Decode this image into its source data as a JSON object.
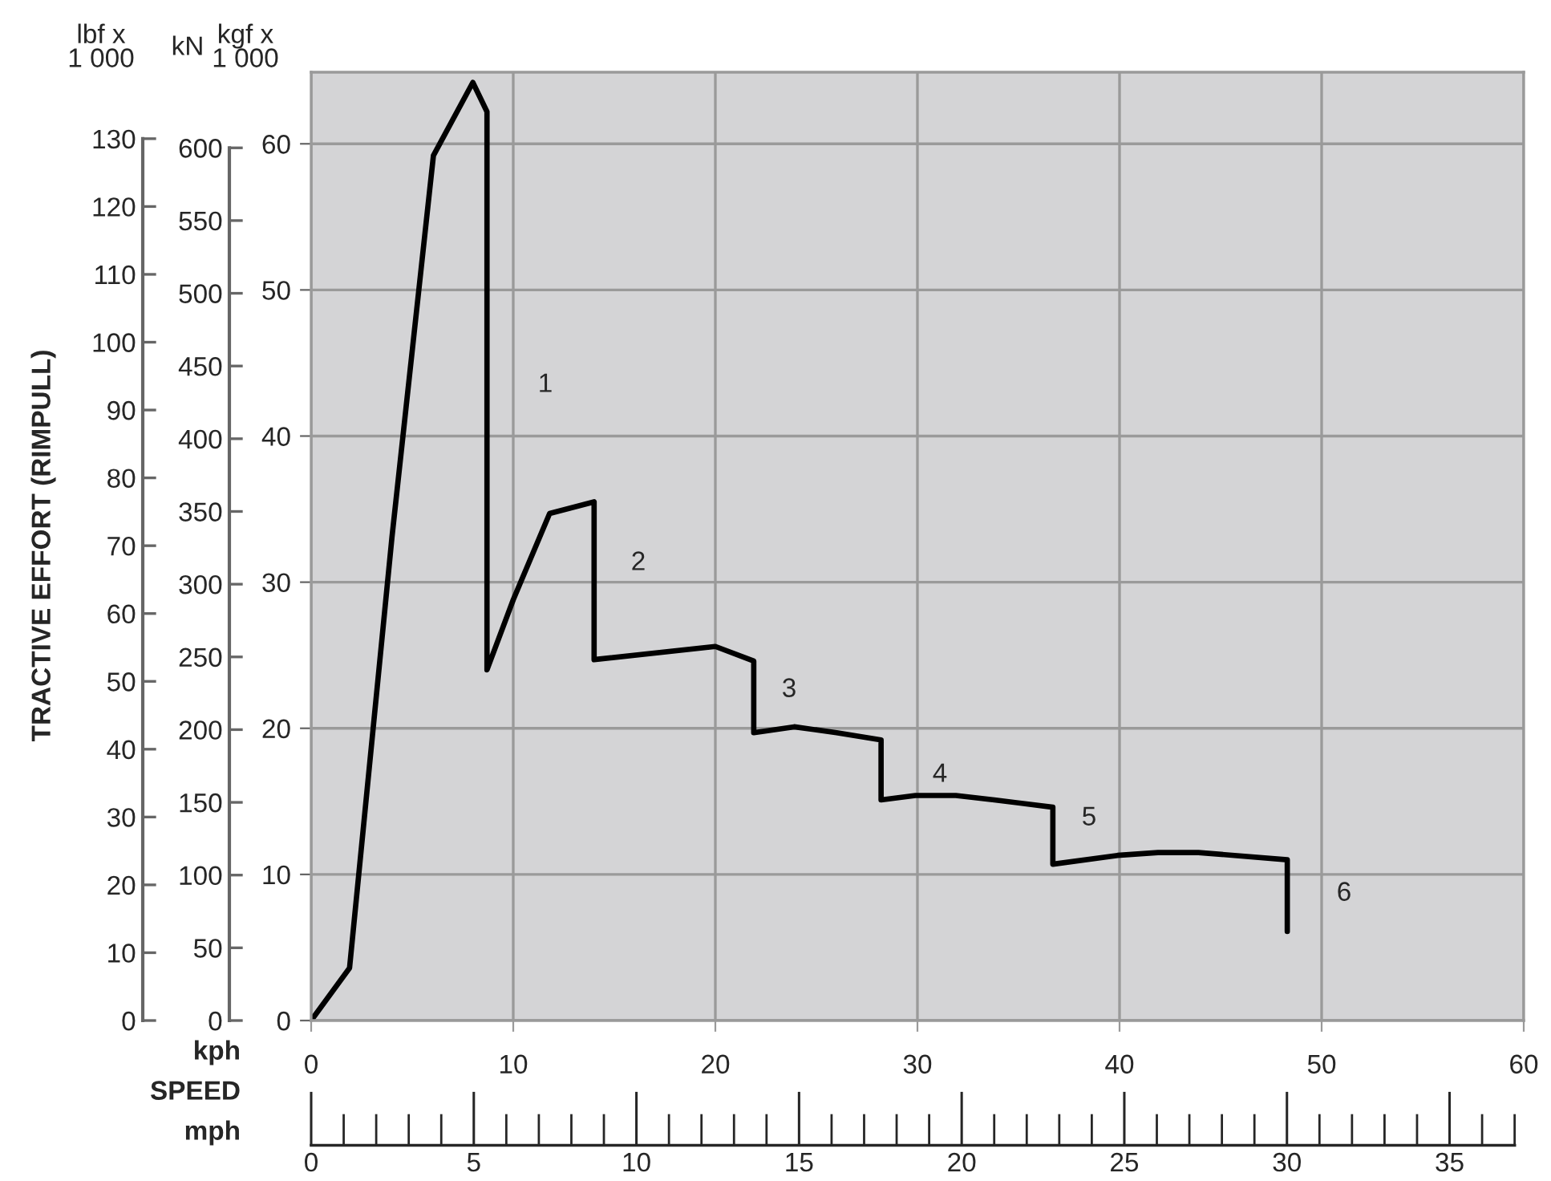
{
  "chart_data": {
    "type": "line",
    "xlabel": "kph",
    "ylabel": "kgf x\n1 000",
    "y2label": "kN",
    "y3label": "lbf x\n1 000",
    "x2label": "mph",
    "x": [
      0,
      1.9,
      4.0,
      6.05,
      8.0,
      8.7,
      8.7,
      10.0,
      11.8,
      14.0,
      14.0,
      20.0,
      21.9,
      21.9,
      23.9,
      26.0,
      28.2,
      28.2,
      29.9,
      31.9,
      33.8,
      36.7,
      36.7,
      39.9,
      41.9,
      43.9,
      48.3,
      48.3
    ],
    "series": [
      {
        "color": "#000000",
        "values": [
          0,
          3.6,
          33.1,
          59.2,
          64.2,
          62.2,
          24.0,
          28.8,
          34.7,
          35.5,
          24.7,
          25.6,
          24.6,
          19.7,
          20.1,
          19.7,
          19.2,
          15.1,
          15.4,
          15.4,
          15.1,
          14.6,
          10.7,
          11.3,
          11.5,
          11.5,
          11.0,
          6.1
        ]
      }
    ],
    "xlim": [
      0,
      60
    ],
    "xticks": [
      0,
      10,
      20,
      30,
      40,
      50,
      60
    ],
    "ylim": [
      0,
      64.9
    ],
    "yticks": [
      0,
      10,
      20,
      30,
      40,
      50,
      60
    ],
    "y2lim": [
      0,
      652
    ],
    "y2ticks": [
      0,
      50,
      100,
      150,
      200,
      250,
      300,
      350,
      400,
      450,
      500,
      550,
      600
    ],
    "y3lim": [
      0,
      139.8
    ],
    "y3ticks": [
      0,
      10,
      20,
      30,
      40,
      50,
      60,
      70,
      80,
      90,
      100,
      110,
      120,
      130
    ],
    "x2lim": [
      0,
      37.28
    ],
    "x2ticks": [
      0,
      5,
      10,
      15,
      20,
      25,
      30,
      35
    ],
    "grid": true,
    "line_style": "solid",
    "annotations": [
      "TRACTIVE EFFORT (RIMPULL)",
      "SPEED",
      "1",
      "2",
      "3",
      "4",
      "5",
      "6"
    ]
  }
}
